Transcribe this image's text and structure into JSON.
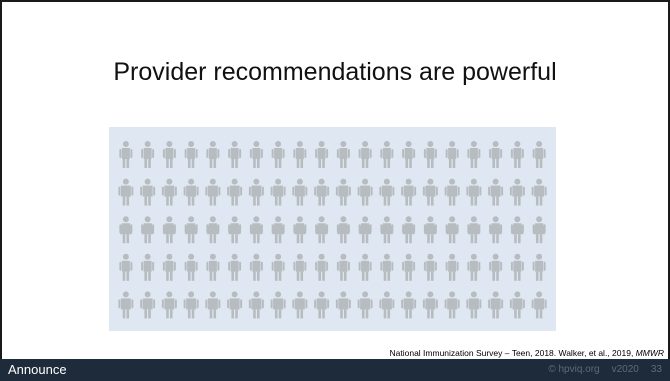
{
  "slide": {
    "title": "Provider recommendations are powerful",
    "figure": {
      "rows": 5,
      "columns": 20,
      "figure_icon": "person-icon",
      "panel_color": "#dfe8f2",
      "figure_color": "#b7bcc0"
    },
    "citation": {
      "text": "National Immunization Survey – Teen, 2018. Walker, et al., 2019, ",
      "journal": "MMWR"
    }
  },
  "footer": {
    "label": "Announce",
    "copyright": "© hpviq.org",
    "version": "v2020",
    "page_number": "33",
    "bar_color": "#1d2b3a"
  }
}
